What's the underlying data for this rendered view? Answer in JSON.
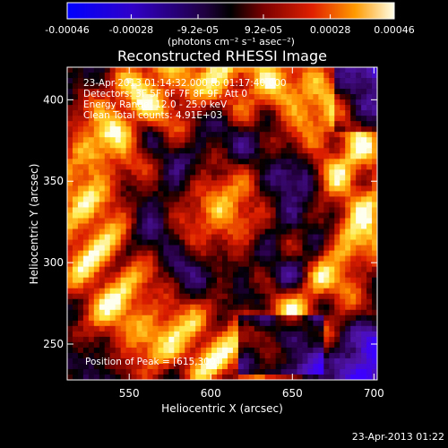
{
  "chart_data": {
    "type": "heatmap",
    "title": "Reconstructed RHESSI Image",
    "xlabel": "Heliocentric X (arcsec)",
    "ylabel": "Heliocentric Y (arcsec)",
    "xlim": [
      512,
      702
    ],
    "ylim": [
      228,
      420
    ],
    "x_ticks": [
      550,
      600,
      650,
      700
    ],
    "y_ticks": [
      250,
      300,
      350,
      400
    ],
    "colorbar": {
      "range": [
        -0.00046,
        0.00046
      ],
      "ticks": [
        -0.00046,
        -0.00028,
        -9.2e-05,
        9.2e-05,
        0.00028,
        0.00046
      ],
      "tick_labels": [
        "-0.00046",
        "-0.00028",
        "-9.2e-05",
        "9.2e-05",
        "0.00028",
        "0.00046"
      ],
      "units": "(photons cm⁻² s⁻¹ asec⁻²)"
    },
    "annotations": [
      "23-Apr-2013 01:14:32.000 to 01:17:40.000",
      "Detectors: 3F 5F 6F 7F 8F 9F, Att 0",
      "Energy Range: 12.0 - 25.0 keV",
      "Clean    Total counts: 4.91E+03"
    ],
    "peak_label": "Position of Peak = [615,300]",
    "peak_position": [
      615,
      300
    ],
    "timestamp": "23-Apr-2013 01:22"
  }
}
